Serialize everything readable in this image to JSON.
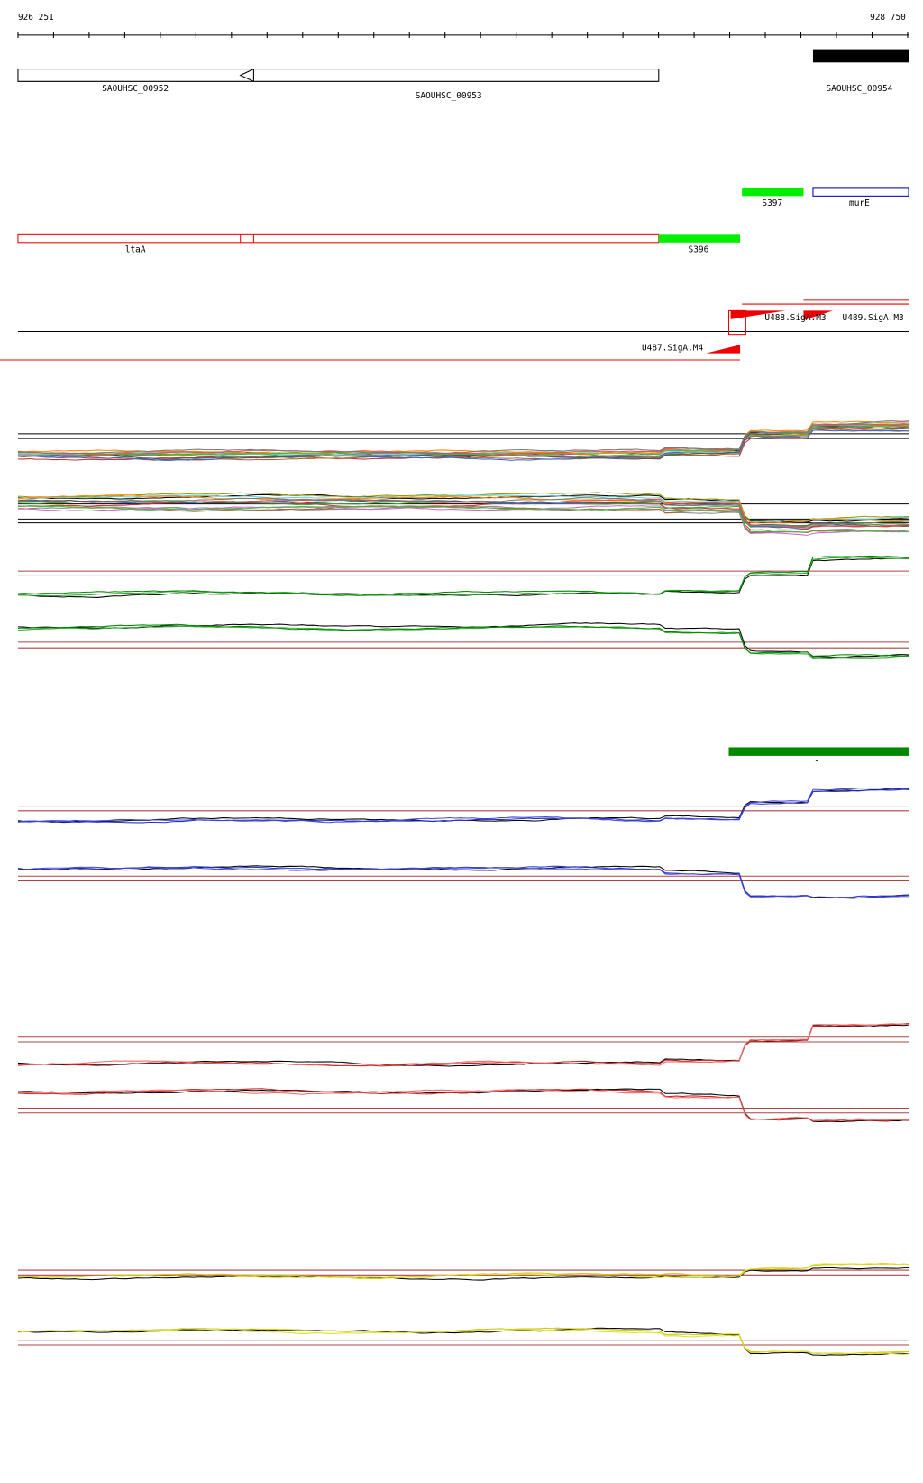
{
  "ruler": {
    "start": "926 251",
    "end": "928 750"
  },
  "genes": [
    "SAOUHSC_00952",
    "SAOUHSC_00953",
    "SAOUHSC_00954"
  ],
  "features": [
    "S397",
    "murE",
    "ltaA",
    "S396"
  ],
  "promoters": [
    "U488.SigA.M3",
    "U489.SigA.M3",
    "U487.SigA.M4"
  ],
  "marker": "-"
}
